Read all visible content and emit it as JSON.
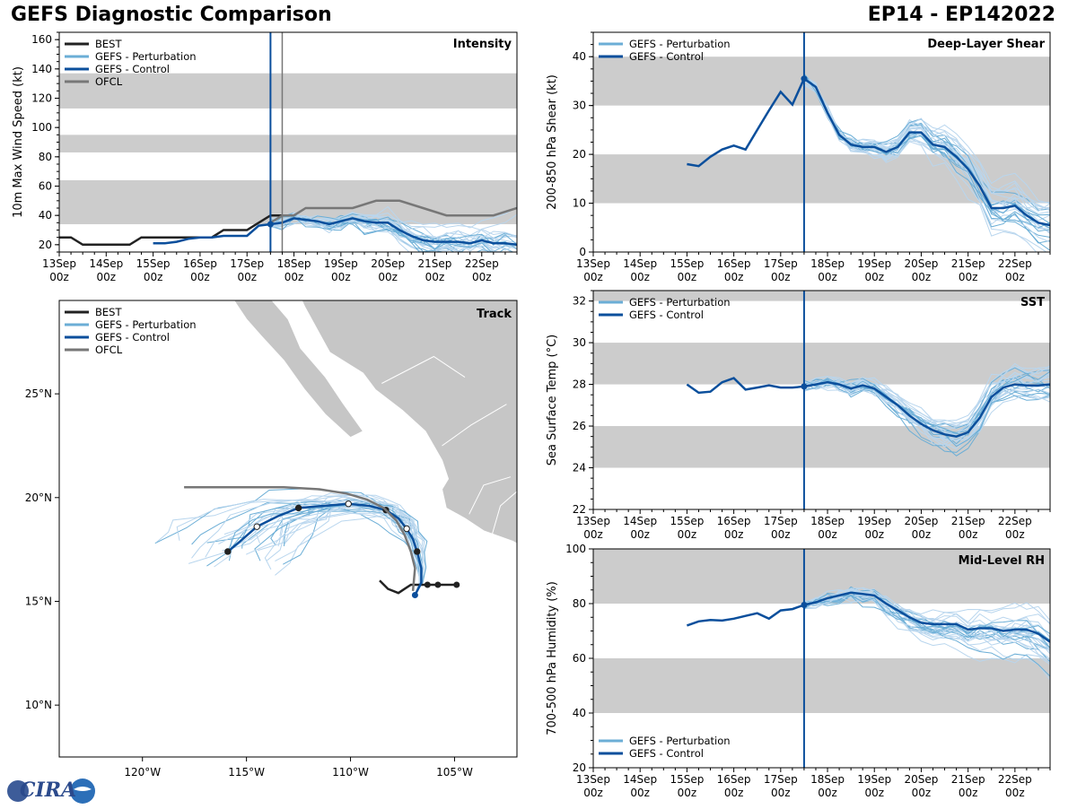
{
  "header": {
    "title_left": "GEFS Diagnostic Comparison",
    "title_right": "EP14 - EP142022"
  },
  "logo": {
    "text": "CIRA"
  },
  "colors": {
    "best": "#222222",
    "perturbation": "#6baed6",
    "perturbation_light": "#b9d6ee",
    "control": "#0b4f9c",
    "ofcl": "#777777",
    "band": "#cccccc",
    "land": "#c6c6c6"
  },
  "time_axis": {
    "tick_dates": [
      "13Sep",
      "14Sep",
      "15Sep",
      "16Sep",
      "17Sep",
      "18Sep",
      "19Sep",
      "20Sep",
      "21Sep",
      "22Sep"
    ],
    "tick_hours": [
      "00z",
      "00z",
      "00z",
      "00z",
      "00z",
      "00z",
      "00z",
      "00z",
      "00z",
      "00z"
    ],
    "range_days": [
      0,
      9.75
    ],
    "analysis_time_days": 4.5
  },
  "chart_data": [
    {
      "id": "intensity",
      "type": "line",
      "title": "Intensity",
      "ylabel": "10m Max Wind Speed (kt)",
      "ylim": [
        15,
        165
      ],
      "yticks": [
        20,
        40,
        60,
        80,
        100,
        120,
        140,
        160
      ],
      "bands": [
        [
          34,
          64
        ],
        [
          83,
          95
        ],
        [
          113,
          137
        ]
      ],
      "ofcl_marker_days": 4.75,
      "legend": [
        "BEST",
        "GEFS - Perturbation",
        "GEFS - Control",
        "OFCL"
      ],
      "series": [
        {
          "name": "BEST",
          "x": [
            0,
            0.25,
            0.5,
            0.75,
            1,
            1.25,
            1.5,
            1.75,
            2,
            2.25,
            2.5,
            2.75,
            3,
            3.25,
            3.5,
            3.75,
            4,
            4.25,
            4.5,
            4.75
          ],
          "values": [
            25,
            25,
            20,
            20,
            20,
            20,
            20,
            25,
            25,
            25,
            25,
            25,
            25,
            25,
            30,
            30,
            30,
            35,
            40,
            40
          ]
        },
        {
          "name": "GEFS - Control",
          "x": [
            2,
            2.25,
            2.5,
            2.75,
            3,
            3.25,
            3.5,
            3.75,
            4,
            4.25,
            4.5,
            4.75,
            5,
            5.25,
            5.5,
            5.75,
            6,
            6.25,
            6.5,
            6.75,
            7,
            7.25,
            7.5,
            7.75,
            8,
            8.25,
            8.5,
            8.75,
            9,
            9.25,
            9.5,
            9.75
          ],
          "values": [
            21,
            21,
            22,
            24,
            25,
            25,
            26,
            26,
            26,
            33,
            34,
            35,
            38,
            37,
            36,
            34,
            36,
            38,
            36,
            35,
            35,
            30,
            26,
            23,
            22,
            22,
            22,
            21,
            23,
            21,
            21,
            20
          ]
        },
        {
          "name": "OFCL",
          "x": [
            4.5,
            4.75,
            5,
            5.25,
            5.75,
            6.25,
            6.75,
            7.25,
            7.75,
            8.25,
            8.75,
            9.25,
            9.75
          ],
          "values": [
            35,
            40,
            40,
            45,
            45,
            45,
            50,
            50,
            45,
            40,
            40,
            40,
            45
          ]
        }
      ]
    },
    {
      "id": "shear",
      "type": "line",
      "title": "Deep-Layer Shear",
      "ylabel": "200-850 hPa Shear (kt)",
      "ylim": [
        0,
        45
      ],
      "yticks": [
        0,
        10,
        20,
        30,
        40
      ],
      "bands": [
        [
          10,
          20
        ],
        [
          30,
          40
        ]
      ],
      "legend": [
        "GEFS - Perturbation",
        "GEFS - Control"
      ],
      "series": [
        {
          "name": "GEFS - Control",
          "x": [
            2,
            2.25,
            2.5,
            2.75,
            3,
            3.25,
            3.5,
            3.75,
            4,
            4.25,
            4.5,
            4.75,
            5,
            5.25,
            5.5,
            5.75,
            6,
            6.25,
            6.5,
            6.75,
            7,
            7.25,
            7.5,
            7.75,
            8,
            8.25,
            8.5,
            8.75,
            9,
            9.25,
            9.5,
            9.75
          ],
          "values": [
            18,
            17.6,
            19.5,
            21,
            21.8,
            21,
            25,
            29,
            32.8,
            30.2,
            35.5,
            33.8,
            28.5,
            24,
            22,
            21.5,
            21.5,
            20.5,
            21.5,
            24.5,
            24.5,
            22,
            21.5,
            19.5,
            17,
            13.5,
            9,
            9,
            9.5,
            7.5,
            6,
            5.5
          ]
        }
      ]
    },
    {
      "id": "sst",
      "type": "line",
      "title": "SST",
      "ylabel": "Sea Surface Temp (°C)",
      "ylim": [
        22,
        32.5
      ],
      "yticks": [
        22,
        24,
        26,
        28,
        30,
        32
      ],
      "bands": [
        [
          24,
          26
        ],
        [
          28,
          30
        ],
        [
          32,
          33
        ]
      ],
      "legend": [
        "GEFS - Perturbation",
        "GEFS - Control"
      ],
      "series": [
        {
          "name": "GEFS - Control",
          "x": [
            2,
            2.25,
            2.5,
            2.75,
            3,
            3.25,
            3.5,
            3.75,
            4,
            4.25,
            4.5,
            4.75,
            5,
            5.25,
            5.5,
            5.75,
            6,
            6.25,
            6.5,
            6.75,
            7,
            7.25,
            7.5,
            7.75,
            8,
            8.25,
            8.5,
            8.75,
            9,
            9.25,
            9.5,
            9.75
          ],
          "values": [
            28,
            27.6,
            27.65,
            28.1,
            28.3,
            27.75,
            27.85,
            27.95,
            27.85,
            27.85,
            27.9,
            28,
            28.1,
            28,
            27.8,
            27.95,
            27.8,
            27.4,
            27,
            26.5,
            26.1,
            25.8,
            25.6,
            25.5,
            25.7,
            26.4,
            27.4,
            27.85,
            28,
            27.95,
            27.95,
            28
          ]
        }
      ]
    },
    {
      "id": "rh",
      "type": "line",
      "title": "Mid-Level RH",
      "ylabel": "700-500 hPa Humidity (%)",
      "ylim": [
        20,
        100
      ],
      "yticks": [
        20,
        40,
        60,
        80,
        100
      ],
      "bands": [
        [
          40,
          60
        ],
        [
          80,
          100
        ]
      ],
      "legend": [
        "GEFS - Perturbation",
        "GEFS - Control"
      ],
      "series": [
        {
          "name": "GEFS - Control",
          "x": [
            2,
            2.25,
            2.5,
            2.75,
            3,
            3.25,
            3.5,
            3.75,
            4,
            4.25,
            4.5,
            4.75,
            5,
            5.25,
            5.5,
            5.75,
            6,
            6.25,
            6.5,
            6.75,
            7,
            7.25,
            7.5,
            7.75,
            8,
            8.25,
            8.5,
            8.75,
            9,
            9.25,
            9.5,
            9.75
          ],
          "values": [
            72,
            73.5,
            74,
            73.8,
            74.5,
            75.5,
            76.5,
            74.5,
            77.5,
            78,
            79.5,
            80.5,
            82,
            83,
            84,
            83.5,
            83,
            80,
            77.5,
            75,
            73,
            72.5,
            72.5,
            72.5,
            70.5,
            71,
            71,
            70,
            70.5,
            70.5,
            69,
            66
          ]
        }
      ]
    },
    {
      "id": "track",
      "type": "map",
      "title": "Track",
      "lon_range": [
        -124,
        -102
      ],
      "lat_range": [
        7.5,
        29.5
      ],
      "xticks": [
        "120°W",
        "115°W",
        "110°W",
        "105°W"
      ],
      "yticks": [
        "10°N",
        "15°N",
        "20°N",
        "25°N"
      ],
      "legend": [
        "BEST",
        "GEFS - Perturbation",
        "GEFS - Control",
        "OFCL"
      ],
      "series": [
        {
          "name": "BEST",
          "lon": [
            -104.9,
            -105.8,
            -106.3,
            -106.5,
            -106.8,
            -107.1,
            -107.4,
            -107.7,
            -108.2,
            -108.6
          ],
          "lat": [
            15.8,
            15.8,
            15.8,
            15.8,
            15.8,
            15.8,
            15.6,
            15.4,
            15.6,
            16.0
          ]
        },
        {
          "name": "GEFS - Control",
          "lon": [
            -106.9,
            -106.6,
            -106.6,
            -106.8,
            -107.0,
            -107.3,
            -107.7,
            -108.3,
            -109.1,
            -110.1,
            -111.3,
            -112.5,
            -113.5,
            -114.5,
            -115.3,
            -115.9
          ],
          "lat": [
            15.3,
            15.9,
            16.6,
            17.4,
            18.0,
            18.5,
            19.0,
            19.4,
            19.6,
            19.7,
            19.6,
            19.5,
            19.1,
            18.6,
            17.9,
            17.4
          ]
        },
        {
          "name": "OFCL",
          "lon": [
            -107.0,
            -106.9,
            -107.1,
            -107.4,
            -107.8,
            -108.4,
            -109.2,
            -110.2,
            -111.5,
            -113.2,
            -115.5,
            -118.0
          ],
          "lat": [
            15.5,
            16.6,
            17.4,
            18.2,
            18.9,
            19.5,
            19.9,
            20.2,
            20.4,
            20.5,
            20.5,
            20.5
          ]
        }
      ]
    }
  ]
}
